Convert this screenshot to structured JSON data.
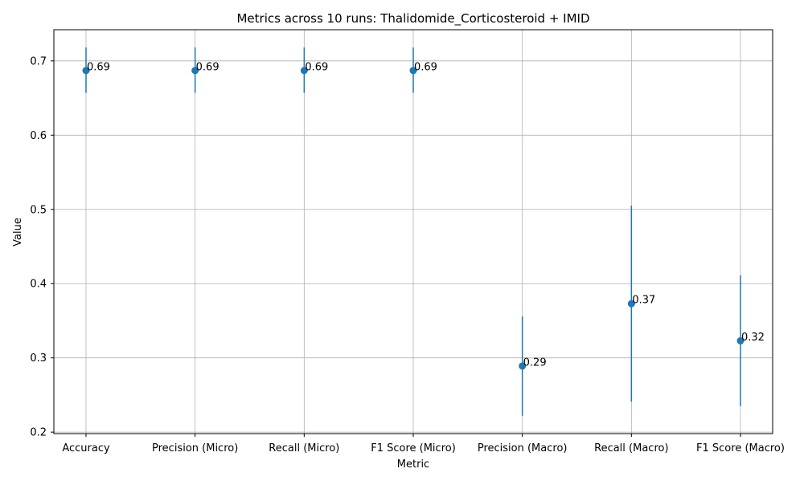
{
  "chart_data": {
    "type": "scatter",
    "title": "Metrics across 10 runs: Thalidomide_Corticosteroid + IMID",
    "xlabel": "Metric",
    "ylabel": "Value",
    "categories": [
      "Accuracy",
      "Precision (Micro)",
      "Recall (Micro)",
      "F1 Score (Micro)",
      "Precision (Macro)",
      "Recall (Macro)",
      "F1 Score (Macro)"
    ],
    "values": [
      0.687,
      0.687,
      0.687,
      0.687,
      0.289,
      0.373,
      0.323
    ],
    "error_low": [
      0.657,
      0.657,
      0.657,
      0.657,
      0.222,
      0.241,
      0.235
    ],
    "error_high": [
      0.718,
      0.718,
      0.718,
      0.718,
      0.356,
      0.505,
      0.411
    ],
    "data_labels": [
      "0.69",
      "0.69",
      "0.69",
      "0.69",
      "0.29",
      "0.37",
      "0.32"
    ],
    "ylim": [
      0.198,
      0.742
    ],
    "yticks": [
      0.2,
      0.3,
      0.4,
      0.5,
      0.6,
      0.7
    ],
    "ytick_labels": [
      "0.2",
      "0.3",
      "0.4",
      "0.5",
      "0.6",
      "0.7"
    ],
    "grid": true,
    "color": "#1f77b4"
  }
}
